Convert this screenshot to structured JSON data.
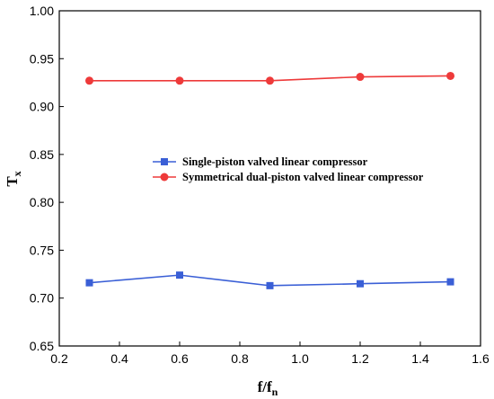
{
  "chart_data": {
    "type": "line",
    "title": "",
    "xlabel_main": "f/f",
    "xlabel_sub": "n",
    "ylabel_main": "T",
    "ylabel_sub": "x",
    "xlim": [
      0.2,
      1.6
    ],
    "ylim": [
      0.65,
      1.0
    ],
    "x_ticks": [
      "0.2",
      "0.4",
      "0.6",
      "0.8",
      "1.0",
      "1.2",
      "1.4",
      "1.6"
    ],
    "y_ticks": [
      "0.65",
      "0.70",
      "0.75",
      "0.80",
      "0.85",
      "0.90",
      "0.95",
      "1.00"
    ],
    "grid": false,
    "legend_placement": "center",
    "series": [
      {
        "name": "Single-piston valved linear compressor",
        "color": "#3a5fd6",
        "marker": "square",
        "x": [
          0.3,
          0.6,
          0.9,
          1.2,
          1.5
        ],
        "y": [
          0.716,
          0.724,
          0.713,
          0.715,
          0.717
        ]
      },
      {
        "name": "Symmetrical dual-piston valved linear compressor",
        "color": "#ee3a3a",
        "marker": "circle",
        "x": [
          0.3,
          0.6,
          0.9,
          1.2,
          1.5
        ],
        "y": [
          0.927,
          0.927,
          0.927,
          0.931,
          0.932
        ]
      }
    ]
  }
}
